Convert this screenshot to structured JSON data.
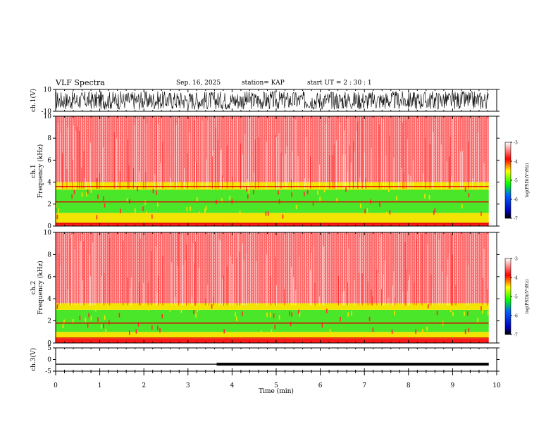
{
  "header": {
    "title": "VLF Spectra",
    "date": "Sep. 16, 2025",
    "station": "station= KAP",
    "start_ut": "start  UT =   2 : 30 : 1"
  },
  "colors": {
    "noise_fg": "#000000",
    "spectrum_low": "#ffffff",
    "spectrum_mid": "#ff0000",
    "spectrum_high": "#ffff00",
    "spectrum_peak": "#00ff00"
  },
  "chart_data": [
    {
      "type": "line",
      "panel": "ch1-waveform",
      "ylabel": "ch.1(V)",
      "ylim": [
        -10,
        10
      ],
      "yticks": [
        "10",
        "-10"
      ],
      "x_range_min": [
        0,
        9.82
      ],
      "description_values": "dense noisy waveform filling approx -8..8 V"
    },
    {
      "type": "heatmap",
      "panel": "ch1-spectrogram",
      "ylabel_top": "ch.1",
      "ylabel": "Frequency (kHz)",
      "ylim": [
        0,
        10
      ],
      "yticks": [
        "0",
        "2",
        "4",
        "6",
        "8",
        "10"
      ],
      "x_range_min": [
        0,
        9.82
      ],
      "bands": [
        {
          "f_lo": 0.0,
          "f_hi": 0.3,
          "level": "red"
        },
        {
          "f_lo": 0.3,
          "f_hi": 1.2,
          "level": "yellow"
        },
        {
          "f_lo": 1.2,
          "f_hi": 3.3,
          "level": "green"
        },
        {
          "f_lo": 3.3,
          "f_hi": 4.0,
          "level": "yellow"
        },
        {
          "f_lo": 4.0,
          "f_hi": 10.0,
          "level": "red-speckle"
        }
      ],
      "lines_khz": [
        2.2,
        3.6,
        0.25
      ]
    },
    {
      "type": "heatmap",
      "panel": "ch2-spectrogram",
      "ylabel_top": "ch.2",
      "ylabel": "Frequency (kHz)",
      "ylim": [
        0,
        10
      ],
      "yticks": [
        "0",
        "2",
        "4",
        "6",
        "8",
        "10"
      ],
      "x_range_min": [
        0,
        9.82
      ],
      "bands": [
        {
          "f_lo": 0.0,
          "f_hi": 0.4,
          "level": "red"
        },
        {
          "f_lo": 0.4,
          "f_hi": 1.0,
          "level": "yellow"
        },
        {
          "f_lo": 1.0,
          "f_hi": 3.0,
          "level": "green"
        },
        {
          "f_lo": 3.0,
          "f_hi": 3.6,
          "level": "yellow"
        },
        {
          "f_lo": 3.6,
          "f_hi": 10.0,
          "level": "red-speckle"
        }
      ],
      "lines_khz": [
        1.8,
        0.45
      ]
    },
    {
      "type": "line",
      "panel": "ch3-waveform",
      "ylabel": "ch.3(V)",
      "ylim": [
        -5,
        5
      ],
      "yticks": [
        "5",
        "0",
        "-5"
      ],
      "xlabel": "Time (min)",
      "xlim": [
        0,
        10
      ],
      "xticks": [
        "0",
        "1",
        "2",
        "3",
        "4",
        "5",
        "6",
        "7",
        "8",
        "9",
        "10"
      ],
      "segments": [
        {
          "x0": 0,
          "x1": 3.65,
          "y": -2.0,
          "thickness": "thin"
        },
        {
          "x0": 3.65,
          "x1": 9.82,
          "y": -2.0,
          "thickness": "thick"
        }
      ]
    }
  ],
  "colorbars": [
    {
      "ylabel": "log(PSD)(V²/Hz)",
      "ticks": [
        "-3",
        "-4",
        "-5",
        "-6",
        "-7"
      ],
      "range": [
        -7,
        -3
      ]
    },
    {
      "ylabel": "log(PSD)(V²/Hz)",
      "ticks": [
        "-3",
        "-4",
        "-5",
        "-6",
        "-7"
      ],
      "range": [
        -7,
        -3
      ]
    }
  ]
}
